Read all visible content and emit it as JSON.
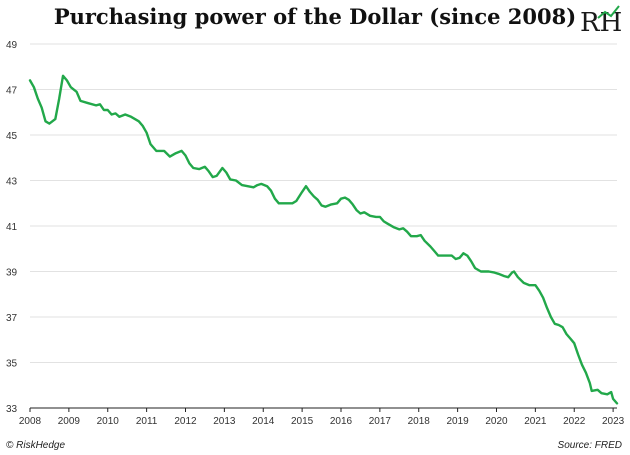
{
  "title": "Purchasing power of the Dollar (since 2008)",
  "logo_text": "RH",
  "footer": {
    "copyright": "© RiskHedge",
    "source": "Source: FRED"
  },
  "colors": {
    "line": "#22a84a",
    "grid": "#e2e2e2",
    "axis": "#222222"
  },
  "chart_data": {
    "type": "line",
    "title": "Purchasing power of the Dollar (since 2008)",
    "xlabel": "",
    "ylabel": "",
    "xlim": [
      2008,
      2023.1
    ],
    "ylim": [
      33,
      49
    ],
    "grid": "horizontal",
    "x_ticks": [
      "2008",
      "2009",
      "2010",
      "2011",
      "2012",
      "2013",
      "2014",
      "2015",
      "2016",
      "2017",
      "2018",
      "2019",
      "2020",
      "2021",
      "2022",
      "2023"
    ],
    "y_ticks": [
      "33",
      "35",
      "37",
      "39",
      "41",
      "43",
      "45",
      "47",
      "49"
    ],
    "series": [
      {
        "name": "",
        "points": [
          [
            2008.0,
            47.4
          ],
          [
            2008.1,
            47.1
          ],
          [
            2008.2,
            46.6
          ],
          [
            2008.3,
            46.2
          ],
          [
            2008.4,
            45.6
          ],
          [
            2008.5,
            45.5
          ],
          [
            2008.65,
            45.7
          ],
          [
            2008.75,
            46.6
          ],
          [
            2008.85,
            47.6
          ],
          [
            2008.95,
            47.4
          ],
          [
            2009.05,
            47.1
          ],
          [
            2009.2,
            46.9
          ],
          [
            2009.3,
            46.5
          ],
          [
            2009.5,
            46.4
          ],
          [
            2009.7,
            46.3
          ],
          [
            2009.8,
            46.35
          ],
          [
            2009.9,
            46.1
          ],
          [
            2010.0,
            46.1
          ],
          [
            2010.1,
            45.9
          ],
          [
            2010.2,
            45.95
          ],
          [
            2010.3,
            45.8
          ],
          [
            2010.45,
            45.9
          ],
          [
            2010.6,
            45.8
          ],
          [
            2010.8,
            45.6
          ],
          [
            2010.9,
            45.4
          ],
          [
            2011.0,
            45.1
          ],
          [
            2011.1,
            44.6
          ],
          [
            2011.25,
            44.3
          ],
          [
            2011.45,
            44.3
          ],
          [
            2011.6,
            44.05
          ],
          [
            2011.75,
            44.2
          ],
          [
            2011.9,
            44.3
          ],
          [
            2012.0,
            44.1
          ],
          [
            2012.1,
            43.75
          ],
          [
            2012.2,
            43.55
          ],
          [
            2012.35,
            43.5
          ],
          [
            2012.5,
            43.6
          ],
          [
            2012.6,
            43.4
          ],
          [
            2012.7,
            43.15
          ],
          [
            2012.8,
            43.2
          ],
          [
            2012.95,
            43.55
          ],
          [
            2013.05,
            43.35
          ],
          [
            2013.15,
            43.05
          ],
          [
            2013.3,
            43.0
          ],
          [
            2013.45,
            42.8
          ],
          [
            2013.6,
            42.75
          ],
          [
            2013.75,
            42.7
          ],
          [
            2013.85,
            42.8
          ],
          [
            2013.95,
            42.85
          ],
          [
            2014.1,
            42.75
          ],
          [
            2014.2,
            42.55
          ],
          [
            2014.3,
            42.2
          ],
          [
            2014.4,
            42.0
          ],
          [
            2014.6,
            42.0
          ],
          [
            2014.75,
            42.0
          ],
          [
            2014.85,
            42.1
          ],
          [
            2015.0,
            42.5
          ],
          [
            2015.1,
            42.75
          ],
          [
            2015.2,
            42.5
          ],
          [
            2015.3,
            42.3
          ],
          [
            2015.4,
            42.15
          ],
          [
            2015.5,
            41.9
          ],
          [
            2015.6,
            41.85
          ],
          [
            2015.75,
            41.95
          ],
          [
            2015.9,
            42.0
          ],
          [
            2016.0,
            42.2
          ],
          [
            2016.1,
            42.25
          ],
          [
            2016.2,
            42.15
          ],
          [
            2016.3,
            41.95
          ],
          [
            2016.4,
            41.7
          ],
          [
            2016.5,
            41.55
          ],
          [
            2016.6,
            41.6
          ],
          [
            2016.75,
            41.45
          ],
          [
            2016.9,
            41.4
          ],
          [
            2017.0,
            41.4
          ],
          [
            2017.1,
            41.2
          ],
          [
            2017.2,
            41.1
          ],
          [
            2017.35,
            40.95
          ],
          [
            2017.5,
            40.85
          ],
          [
            2017.6,
            40.9
          ],
          [
            2017.7,
            40.75
          ],
          [
            2017.8,
            40.55
          ],
          [
            2017.95,
            40.55
          ],
          [
            2018.05,
            40.6
          ],
          [
            2018.15,
            40.35
          ],
          [
            2018.3,
            40.1
          ],
          [
            2018.4,
            39.9
          ],
          [
            2018.5,
            39.7
          ],
          [
            2018.7,
            39.7
          ],
          [
            2018.85,
            39.7
          ],
          [
            2018.95,
            39.55
          ],
          [
            2019.05,
            39.6
          ],
          [
            2019.15,
            39.8
          ],
          [
            2019.25,
            39.7
          ],
          [
            2019.35,
            39.45
          ],
          [
            2019.45,
            39.15
          ],
          [
            2019.6,
            39.0
          ],
          [
            2019.8,
            39.0
          ],
          [
            2019.95,
            38.95
          ],
          [
            2020.05,
            38.9
          ],
          [
            2020.2,
            38.8
          ],
          [
            2020.3,
            38.75
          ],
          [
            2020.4,
            38.95
          ],
          [
            2020.45,
            39.0
          ],
          [
            2020.55,
            38.75
          ],
          [
            2020.7,
            38.5
          ],
          [
            2020.85,
            38.4
          ],
          [
            2021.0,
            38.4
          ],
          [
            2021.1,
            38.15
          ],
          [
            2021.2,
            37.85
          ],
          [
            2021.3,
            37.4
          ],
          [
            2021.4,
            37.0
          ],
          [
            2021.5,
            36.7
          ],
          [
            2021.6,
            36.65
          ],
          [
            2021.7,
            36.55
          ],
          [
            2021.8,
            36.25
          ],
          [
            2021.9,
            36.05
          ],
          [
            2022.0,
            35.85
          ],
          [
            2022.1,
            35.35
          ],
          [
            2022.2,
            34.9
          ],
          [
            2022.3,
            34.55
          ],
          [
            2022.4,
            34.1
          ],
          [
            2022.45,
            33.75
          ],
          [
            2022.6,
            33.8
          ],
          [
            2022.7,
            33.65
          ],
          [
            2022.85,
            33.6
          ],
          [
            2022.95,
            33.7
          ],
          [
            2023.0,
            33.4
          ],
          [
            2023.1,
            33.2
          ]
        ]
      }
    ]
  }
}
